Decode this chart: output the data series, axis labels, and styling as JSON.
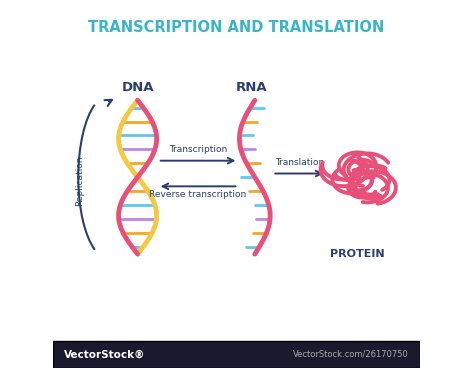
{
  "title": "TRANSCRIPTION AND TRANSLATION",
  "title_color": "#3ab5c8",
  "title_fontsize": 10.5,
  "bg_color": "#ffffff",
  "dna_label": "DNA",
  "rna_label": "RNA",
  "protein_label": "PROTEIN",
  "replication_label": "Replication",
  "transcription_label": "Transcription",
  "reverse_label": "Reverse transcription",
  "translation_label": "Translation",
  "label_color": "#2c3e70",
  "arrow_color": "#2c3e70",
  "dna_strand1_color": "#f5c842",
  "dna_strand2_color": "#e8507a",
  "rna_strand_color": "#e8507a",
  "rung_colors": [
    "#5bc8f5",
    "#f5a623",
    "#c084e8",
    "#5bc8f5",
    "#f5a623"
  ],
  "protein_color": "#e8507a",
  "vectorstock_bar_color": "#1a1a2e",
  "figsize": [
    4.73,
    3.69
  ],
  "dpi": 100
}
